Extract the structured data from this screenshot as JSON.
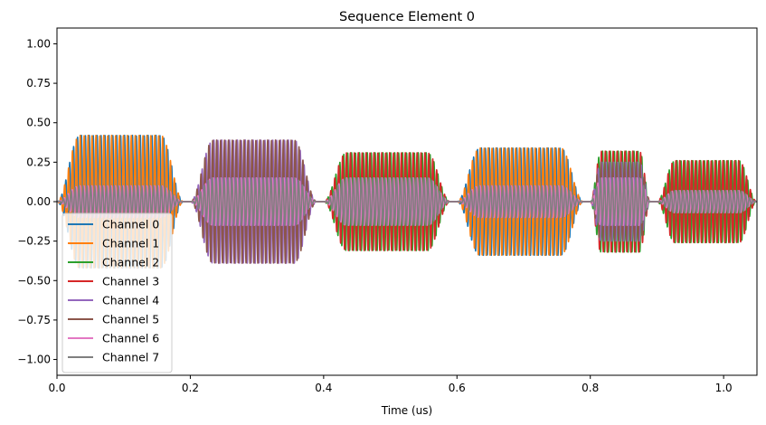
{
  "chart_data": {
    "type": "line",
    "title": "Sequence Element 0",
    "xlabel": "Time (us)",
    "ylabel": "",
    "xlim": [
      0.0,
      1.05
    ],
    "ylim": [
      -1.1,
      1.1
    ],
    "x_ticks": [
      "0.0",
      "0.2",
      "0.4",
      "0.6",
      "0.8",
      "1.0"
    ],
    "y_ticks": [
      "−1.00",
      "−0.75",
      "−0.50",
      "−0.25",
      "0.00",
      "0.25",
      "0.50",
      "0.75",
      "1.00"
    ],
    "grid": false,
    "legend_position": "lower-left",
    "pulses": [
      {
        "start": 0.0,
        "end": 0.19
      },
      {
        "start": 0.2,
        "end": 0.39
      },
      {
        "start": 0.4,
        "end": 0.59
      },
      {
        "start": 0.6,
        "end": 0.79
      },
      {
        "start": 0.8,
        "end": 0.89
      },
      {
        "start": 0.9,
        "end": 1.05
      }
    ],
    "series": [
      {
        "name": "Channel 0",
        "color": "#1f77b4",
        "amplitudes": [
          0.42,
          0.0,
          0.0,
          0.34,
          0.0,
          0.0
        ]
      },
      {
        "name": "Channel 1",
        "color": "#ff7f0e",
        "amplitudes": [
          0.42,
          0.0,
          0.0,
          0.34,
          0.0,
          0.0
        ]
      },
      {
        "name": "Channel 2",
        "color": "#2ca02c",
        "amplitudes": [
          0.0,
          0.0,
          0.31,
          0.0,
          0.32,
          0.26
        ]
      },
      {
        "name": "Channel 3",
        "color": "#d62728",
        "amplitudes": [
          0.0,
          0.0,
          0.31,
          0.0,
          0.32,
          0.26
        ]
      },
      {
        "name": "Channel 4",
        "color": "#9467bd",
        "amplitudes": [
          0.0,
          0.39,
          0.0,
          0.0,
          0.25,
          0.0
        ]
      },
      {
        "name": "Channel 5",
        "color": "#8c564b",
        "amplitudes": [
          0.0,
          0.39,
          0.0,
          0.0,
          0.25,
          0.0
        ]
      },
      {
        "name": "Channel 6",
        "color": "#e377c2",
        "amplitudes": [
          0.1,
          0.15,
          0.15,
          0.1,
          0.15,
          0.07
        ]
      },
      {
        "name": "Channel 7",
        "color": "#7f7f7f",
        "amplitudes": [
          0.1,
          0.15,
          0.15,
          0.1,
          0.15,
          0.07
        ]
      }
    ]
  }
}
